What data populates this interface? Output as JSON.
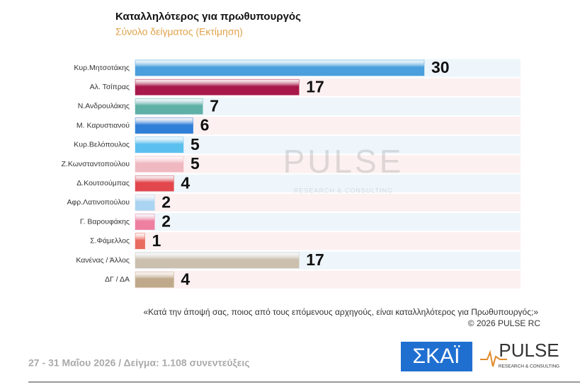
{
  "chart_data": {
    "type": "bar",
    "orientation": "horizontal",
    "title": "Καταλληλότερος για πρωθυπουργός",
    "subtitle": "Σύνολο δείγματος  (Εκτίμηση)",
    "categories": [
      "Κυρ.Μητσοτάκης",
      "Αλ. Τσίπρας",
      "Ν.Ανδρουλάκης",
      "Μ. Καρυστιανού",
      "Κυρ.Βελόπουλος",
      "Ζ.Κωνσταντοπούλου",
      "Δ.Κουτσούμπας",
      "Αφρ.Λατινοπούλου",
      "Γ. Βαρουφάκης",
      "Σ.Φάμελλος",
      "Κανένας / Άλλος",
      "ΔΓ / ΔΑ"
    ],
    "values": [
      30,
      17,
      7,
      6,
      5,
      5,
      4,
      2,
      2,
      1,
      17,
      4
    ],
    "colors": [
      "#4a9fdc",
      "#a8184a",
      "#5fb0a6",
      "#2f7fd8",
      "#5cc0ee",
      "#f0b8c0",
      "#e2474d",
      "#a9d4f2",
      "#ef7fa0",
      "#e96b60",
      "#cbbfae",
      "#bfa98a"
    ],
    "xlim": [
      0,
      40
    ],
    "question": "«Κατά την άποψή σας, ποιος από τους επόμενους αρχηγούς, είναι καταλληλότερος για Πρωθυπουργός;»",
    "copyright": "©  2026  PULSE RC",
    "footer": "27 - 31  Μαΐου 2026  /  Δείγμα:  1.108 συνεντεύξεις",
    "logo_skai": "ΣΚΑΪ",
    "logo_pulse": "PULSE",
    "logo_pulse_sub": "RESEARCH & CONSULTING"
  }
}
